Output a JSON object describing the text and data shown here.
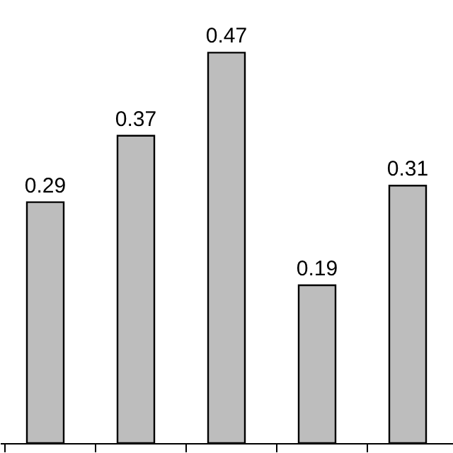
{
  "chart_data": {
    "type": "bar",
    "categories": [
      null,
      null,
      null,
      null,
      null
    ],
    "values": [
      0.29,
      0.37,
      0.47,
      0.19,
      0.31
    ],
    "color": "#bdbdbd",
    "data_labels": true,
    "relative": false,
    "ylim": [
      0,
      0.53
    ],
    "tick_labels": false,
    "grid": false
  }
}
